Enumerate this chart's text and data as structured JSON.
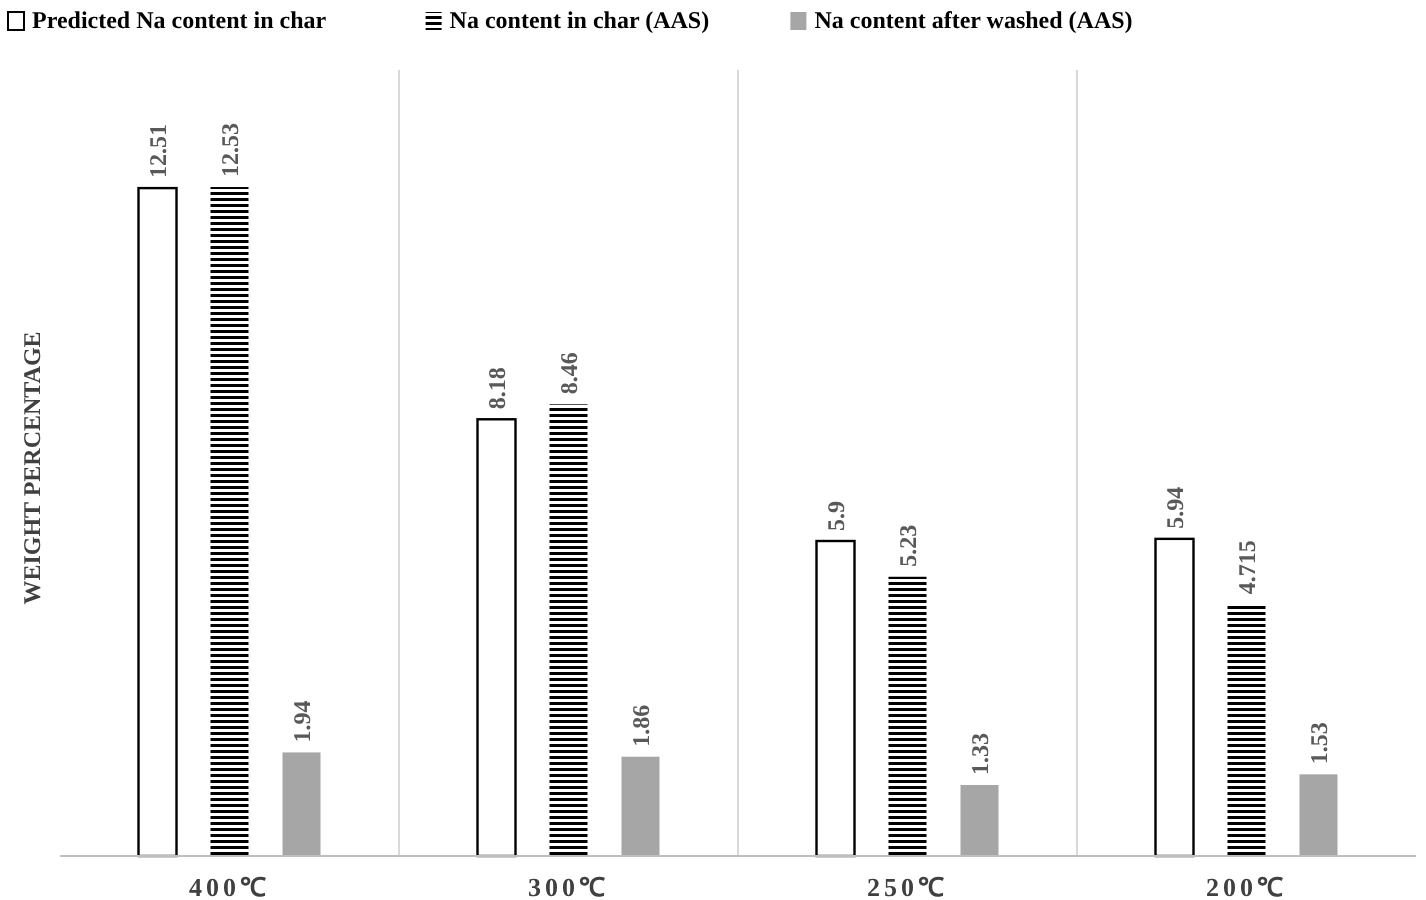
{
  "chart_data": {
    "type": "bar",
    "ylabel": "WEIGHT PERCENTAGE",
    "categories": [
      "400℃",
      "300℃",
      "250℃",
      "200℃"
    ],
    "series": [
      {
        "name": "Predicted Na content in char",
        "color": "#ffffff",
        "values": [
          12.51,
          8.18,
          5.9,
          5.94
        ]
      },
      {
        "name": "Na content in char (AAS)",
        "color": "#000000",
        "values": [
          12.53,
          8.46,
          5.23,
          4.715
        ]
      },
      {
        "name": "Na content after washed (AAS)",
        "color": "#a6a6a6",
        "values": [
          1.94,
          1.86,
          1.33,
          1.53
        ]
      }
    ],
    "data_labels": true,
    "grid": "x",
    "legend": "top left"
  }
}
